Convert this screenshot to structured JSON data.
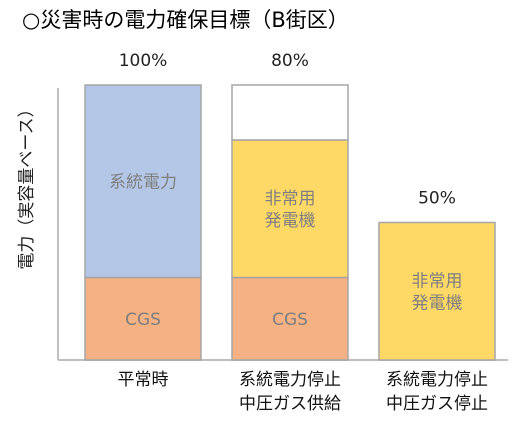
{
  "chart_data": {
    "type": "bar",
    "stacked": true,
    "title": "○災害時の電力確保目標（B街区）",
    "ylabel": "電力（実容量ベース）",
    "ylim": [
      0,
      100
    ],
    "grid": false,
    "categories": [
      [
        "平常時"
      ],
      [
        "系統電力停止",
        "中圧ガス供給"
      ],
      [
        "系統電力停止",
        "中圧ガス停止"
      ]
    ],
    "totals": [
      "100%",
      "80%",
      "50%"
    ],
    "bars": [
      {
        "segments": [
          {
            "label": [
              "CGS"
            ],
            "value": 30,
            "color": "#F4B183"
          },
          {
            "label": [
              "系統電力"
            ],
            "value": 70,
            "color": "#B4C7E7"
          }
        ]
      },
      {
        "segments": [
          {
            "label": [
              "CGS"
            ],
            "value": 30,
            "color": "#F4B183"
          },
          {
            "label": [
              "非常用",
              "発電機"
            ],
            "value": 50,
            "color": "#FFD966"
          },
          {
            "label": [],
            "value": 20,
            "color": "#FFFFFF"
          }
        ]
      },
      {
        "segments": [
          {
            "label": [
              "非常用",
              "発電機"
            ],
            "value": 50,
            "color": "#FFD966"
          }
        ]
      }
    ],
    "axis_color": "#BFBFBF",
    "outline_color": "#A6A6A6"
  }
}
